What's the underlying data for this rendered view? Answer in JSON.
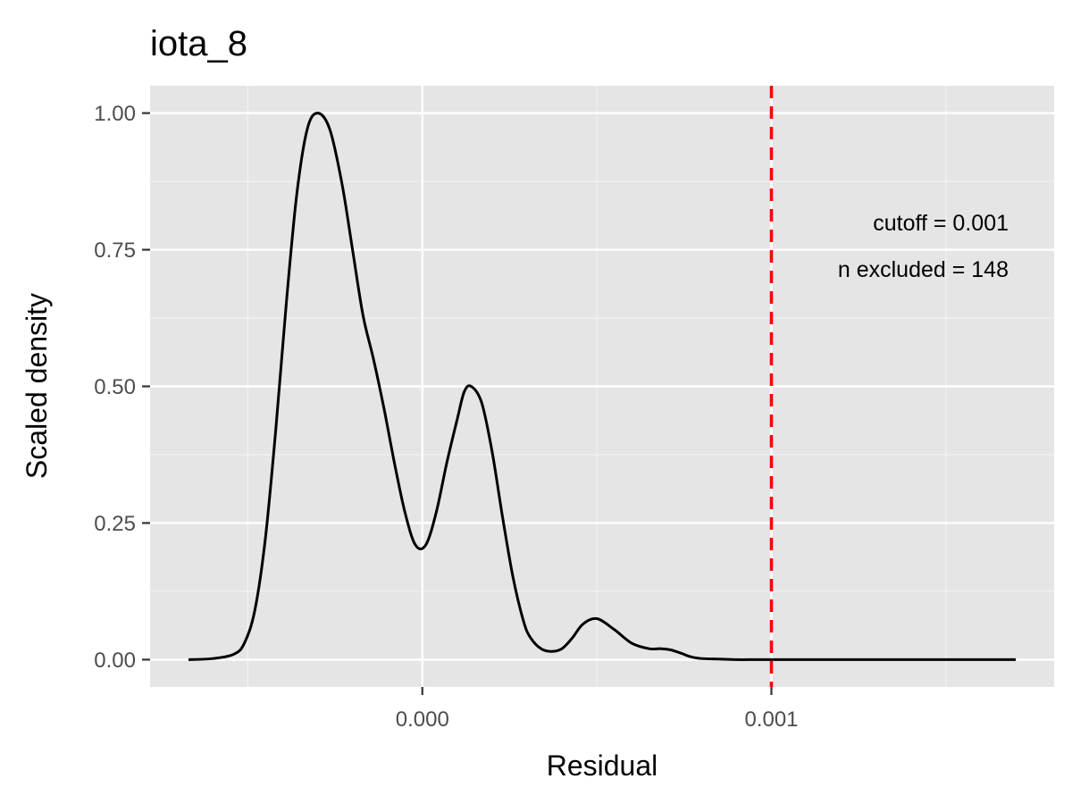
{
  "chart_data": {
    "type": "line",
    "title": "iota_8",
    "xlabel": "Residual",
    "ylabel": "Scaled density",
    "xlim": [
      -0.00078,
      0.00181
    ],
    "ylim": [
      -0.05,
      1.05
    ],
    "x_ticks": [
      {
        "value": 0.0,
        "label": "0.000"
      },
      {
        "value": 0.001,
        "label": "0.001"
      }
    ],
    "x_minor_ticks": [
      -0.0005,
      0.0005,
      0.0015
    ],
    "y_ticks": [
      {
        "value": 0.0,
        "label": "0.00"
      },
      {
        "value": 0.25,
        "label": "0.25"
      },
      {
        "value": 0.5,
        "label": "0.50"
      },
      {
        "value": 0.75,
        "label": "0.75"
      },
      {
        "value": 1.0,
        "label": "1.00"
      }
    ],
    "y_minor_ticks": [
      0.125,
      0.375,
      0.625,
      0.875
    ],
    "grid": true,
    "series": [
      {
        "color": "#000000",
        "x": [
          -0.00067,
          -0.0006,
          -0.00054,
          -0.00051,
          -0.00048,
          -0.00045,
          -0.00042,
          -0.00039,
          -0.00036,
          -0.00033,
          -0.0003,
          -0.000265,
          -0.00023,
          -0.0002,
          -0.00017,
          -0.00014,
          -0.00011,
          -8e-05,
          -5e-05,
          -2e-05,
          1e-05,
          4e-05,
          7e-05,
          0.0001,
          0.00012,
          0.00014,
          0.00017,
          0.0002,
          0.00023,
          0.00026,
          0.00029,
          0.00031,
          0.00034,
          0.00037,
          0.0004,
          0.00043,
          0.00046,
          0.0005,
          0.00055,
          0.0006,
          0.00065,
          0.00068,
          0.00071,
          0.00074,
          0.00077,
          0.0008,
          0.00085,
          0.0009,
          0.00095,
          0.001,
          0.00105,
          0.0011,
          0.0012,
          0.0013,
          0.0015,
          0.0017
        ],
        "y": [
          0.0,
          0.002,
          0.01,
          0.03,
          0.09,
          0.22,
          0.42,
          0.65,
          0.85,
          0.97,
          1.0,
          0.97,
          0.87,
          0.75,
          0.63,
          0.55,
          0.46,
          0.36,
          0.27,
          0.21,
          0.21,
          0.27,
          0.36,
          0.44,
          0.49,
          0.5,
          0.47,
          0.38,
          0.26,
          0.15,
          0.07,
          0.04,
          0.02,
          0.015,
          0.02,
          0.04,
          0.065,
          0.075,
          0.055,
          0.03,
          0.02,
          0.02,
          0.018,
          0.012,
          0.005,
          0.002,
          0.001,
          0.0,
          0.0,
          0.0,
          0.0,
          0.0,
          0.0,
          0.0,
          0.0,
          0.0
        ]
      }
    ],
    "cutoff": {
      "x": 0.001,
      "color": "#ff0000",
      "style": "dashed"
    },
    "annotations": [
      "cutoff = 0.001",
      "n excluded = 148"
    ]
  }
}
